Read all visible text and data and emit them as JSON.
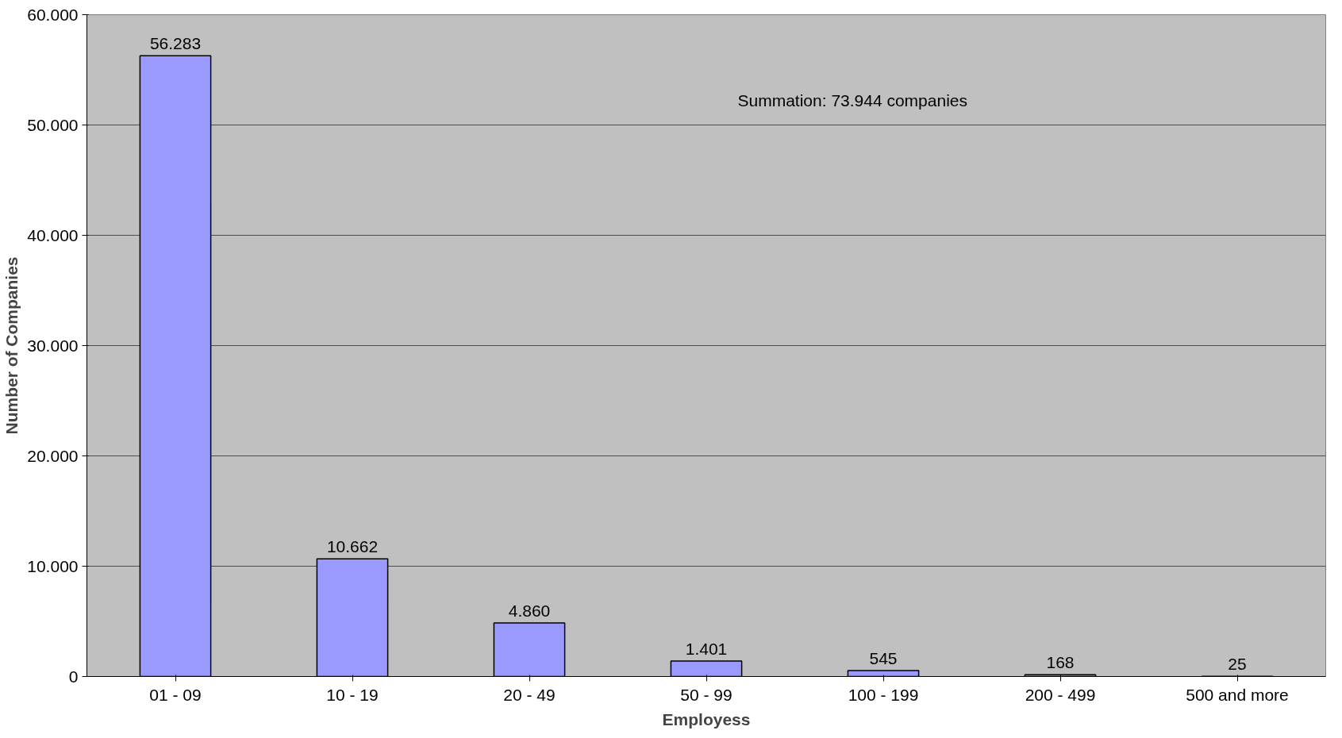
{
  "chart_data": {
    "type": "bar",
    "xlabel": "Employess",
    "ylabel": "Number of Companies",
    "categories": [
      "01 - 09",
      "10 - 19",
      "20 - 49",
      "50 - 99",
      "100 - 199",
      "200 - 499",
      "500 and more"
    ],
    "series": [
      {
        "color": "#9999ff",
        "values": [
          56283,
          10662,
          4860,
          1401,
          545,
          168,
          25
        ],
        "value_labels": [
          "56.283",
          "10.662",
          "4.860",
          "1.401",
          "545",
          "168",
          "25"
        ]
      }
    ],
    "ylim": [
      0,
      60000
    ],
    "yticks": [
      {
        "value": 0,
        "label": "0"
      },
      {
        "value": 10000,
        "label": "10.000"
      },
      {
        "value": 20000,
        "label": "20.000"
      },
      {
        "value": 30000,
        "label": "30.000"
      },
      {
        "value": 40000,
        "label": "40.000"
      },
      {
        "value": 50000,
        "label": "50.000"
      },
      {
        "value": 60000,
        "label": "60.000"
      }
    ],
    "grid": "y",
    "annotations": [
      "Summation: 73.944 companies"
    ]
  }
}
